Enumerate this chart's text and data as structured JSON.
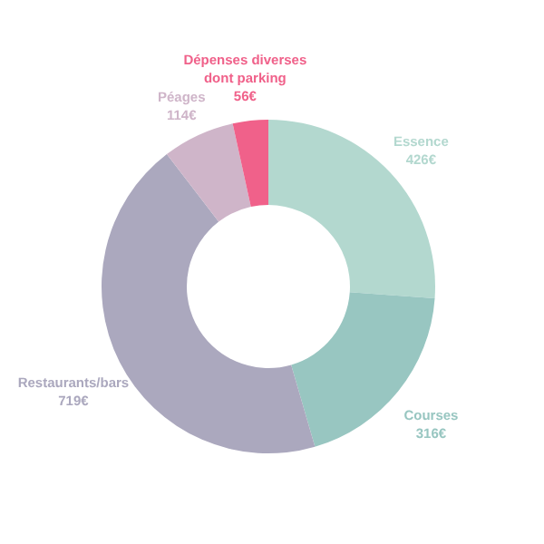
{
  "chart_data": {
    "type": "donut",
    "categories": [
      "Essence",
      "Courses",
      "Restaurants/bars",
      "Péages",
      "Dépenses diverses dont parking"
    ],
    "values": [
      426,
      316,
      719,
      114,
      56
    ],
    "value_labels": [
      "426€",
      "316€",
      "719€",
      "114€",
      "56€"
    ],
    "colors": [
      "#b3d8cf",
      "#98c6c1",
      "#aba8be",
      "#cfb5c9",
      "#f0618a"
    ]
  }
}
